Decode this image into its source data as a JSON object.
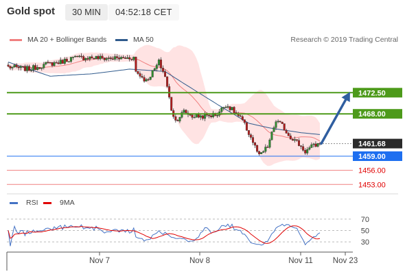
{
  "header": {
    "title": "Gold spot",
    "timeframe": "30 MIN",
    "clock": "04:52:18 CET"
  },
  "legend": {
    "bollinger_label": "MA 20 + Bollinger Bands",
    "ma50_label": "MA 50",
    "source": "Research © 2019 Trading Central"
  },
  "indicator": {
    "rsi_label": "RSI",
    "ma9_label": "9MA"
  },
  "colors": {
    "bollinger": "#f08080",
    "ma50": "#2f5a8c",
    "resistance": "#4d9a1a",
    "support": "#1e6ff0",
    "price_tag": "#2b2b2b",
    "bull_arrow": "#2f5ea0",
    "rsi": "#4472c4",
    "rsi_ma": "#e00000"
  },
  "chart_data": [
    {
      "type": "candlestick",
      "x_tick_labels": [
        "Nov 7",
        "Nov 8",
        "Nov 11",
        "Nov 23"
      ],
      "ylim": [
        1451,
        1482
      ],
      "levels": [
        {
          "label": "1472.50",
          "value": 1472.5,
          "kind": "resistance"
        },
        {
          "label": "1468.00",
          "value": 1468.0,
          "kind": "resistance"
        },
        {
          "label": "1461.68",
          "value": 1461.68,
          "kind": "last-price"
        },
        {
          "label": "1459.00",
          "value": 1459.0,
          "kind": "pivot"
        },
        {
          "label": "1456.00",
          "value": 1456.0,
          "kind": "support"
        },
        {
          "label": "1453.00",
          "value": 1453.0,
          "kind": "support"
        }
      ],
      "forecast_arrow": {
        "from": 1461.68,
        "to": 1472.5
      }
    },
    {
      "type": "line",
      "series": [
        {
          "name": "RSI"
        },
        {
          "name": "9MA"
        }
      ],
      "y_tick_labels": [
        "70",
        "50",
        "30"
      ],
      "y_ticks": [
        70,
        50,
        30
      ],
      "ylim": [
        12,
        88
      ]
    }
  ]
}
